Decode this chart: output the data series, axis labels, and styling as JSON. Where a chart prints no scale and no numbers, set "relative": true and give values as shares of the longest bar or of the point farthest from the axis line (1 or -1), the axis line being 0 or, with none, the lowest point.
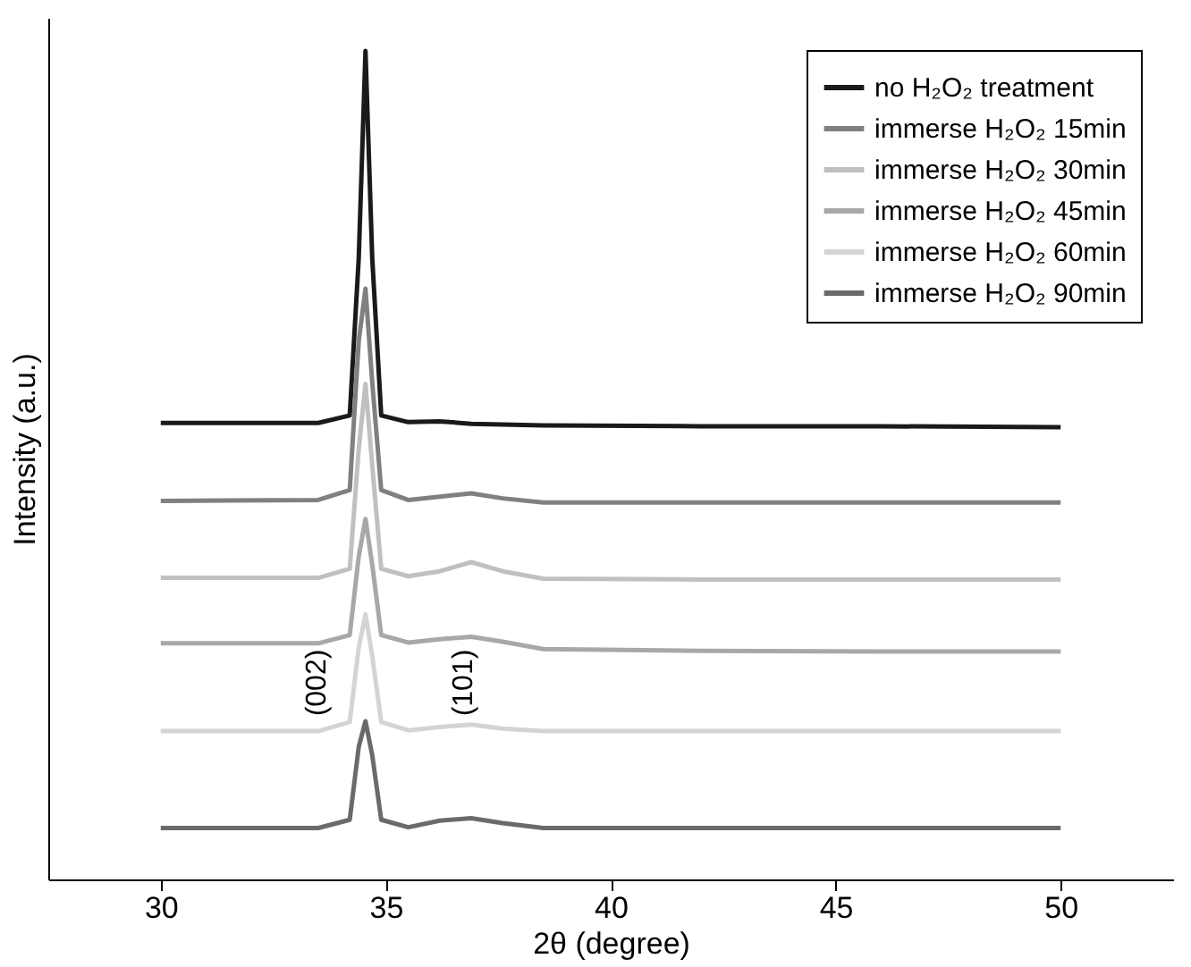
{
  "chart_data": {
    "type": "line",
    "relative": true,
    "xlabel": "2θ (degree)",
    "ylabel": "Intensity (a.u.)",
    "xlim": [
      27.5,
      52.5
    ],
    "xticks": [
      30,
      35,
      40,
      45,
      50
    ],
    "grid": false,
    "legend": "top right",
    "marker": "none",
    "line_style": "solid",
    "x": [
      30,
      33.5,
      34.2,
      34.4,
      34.55,
      34.7,
      34.9,
      35.5,
      36.2,
      36.9,
      37.6,
      38.5,
      42,
      46,
      50
    ],
    "series": [
      {
        "name": "no H₂O₂ treatment",
        "color": "#1a1a1a",
        "values": [
          0.551,
          0.551,
          0.56,
          0.75,
          1.0,
          0.75,
          0.56,
          0.552,
          0.553,
          0.55,
          0.549,
          0.548,
          0.547,
          0.547,
          0.546
        ]
      },
      {
        "name": "immerse H₂O₂ 15min",
        "color": "#808080",
        "values": [
          0.457,
          0.458,
          0.47,
          0.65,
          0.713,
          0.6,
          0.47,
          0.458,
          0.462,
          0.466,
          0.46,
          0.455,
          0.455,
          0.455,
          0.455
        ]
      },
      {
        "name": "immerse H₂O₂ 30min",
        "color": "#c0c0c0",
        "values": [
          0.364,
          0.364,
          0.375,
          0.52,
          0.598,
          0.5,
          0.375,
          0.366,
          0.372,
          0.383,
          0.372,
          0.363,
          0.362,
          0.362,
          0.362
        ]
      },
      {
        "name": "immerse H₂O₂ 45min",
        "color": "#a8a8a8",
        "values": [
          0.285,
          0.285,
          0.295,
          0.39,
          0.435,
          0.38,
          0.295,
          0.286,
          0.29,
          0.293,
          0.287,
          0.278,
          0.276,
          0.275,
          0.275
        ]
      },
      {
        "name": "immerse H₂O₂ 60min",
        "color": "#d4d4d4",
        "values": [
          0.179,
          0.179,
          0.19,
          0.28,
          0.32,
          0.27,
          0.19,
          0.18,
          0.184,
          0.187,
          0.182,
          0.179,
          0.179,
          0.179,
          0.179
        ]
      },
      {
        "name": "immerse H₂O₂ 90min",
        "color": "#6a6a6a",
        "values": [
          0.062,
          0.062,
          0.072,
          0.16,
          0.191,
          0.15,
          0.072,
          0.063,
          0.071,
          0.074,
          0.068,
          0.062,
          0.062,
          0.062,
          0.062
        ]
      }
    ],
    "annotations": [
      "(002)",
      "(101)"
    ]
  }
}
